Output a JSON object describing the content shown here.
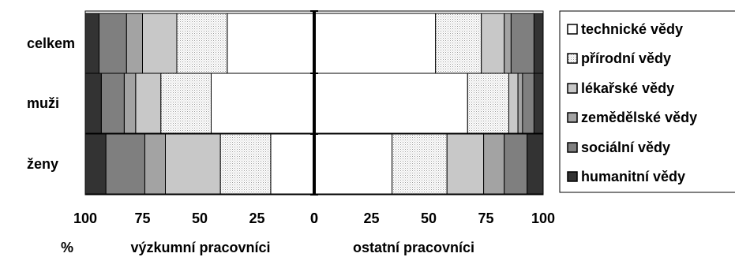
{
  "chart_data": {
    "type": "bar",
    "orientation": "horizontal",
    "stacked": true,
    "categories": [
      "celkem",
      "muži",
      "ženy"
    ],
    "panels": [
      {
        "name": "výzkumní pracovníci",
        "direction": "reversed",
        "xlim": [
          100,
          0
        ],
        "ticks": [
          "100",
          "75",
          "50",
          "25",
          "0"
        ],
        "tick_values": [
          100,
          75,
          50,
          25,
          0
        ],
        "series": [
          {
            "name": "technické vědy",
            "values": [
              38,
              45,
              19
            ]
          },
          {
            "name": "přírodní vědy",
            "values": [
              22,
              22,
              22
            ]
          },
          {
            "name": "lékařské vědy",
            "values": [
              15,
              11,
              24
            ]
          },
          {
            "name": "zemědělské vědy",
            "values": [
              7,
              5,
              9
            ]
          },
          {
            "name": "sociální vědy",
            "values": [
              12,
              10,
              17
            ]
          },
          {
            "name": "humanitní vědy",
            "values": [
              6,
              7,
              9
            ]
          }
        ]
      },
      {
        "name": "ostatní pracovníci",
        "direction": "normal",
        "xlim": [
          0,
          100
        ],
        "ticks": [
          "0",
          "25",
          "50",
          "75",
          "100"
        ],
        "tick_values": [
          0,
          25,
          50,
          75,
          100
        ],
        "series": [
          {
            "name": "technické vědy",
            "values": [
              53,
              67,
              34
            ]
          },
          {
            "name": "přírodní vědy",
            "values": [
              20,
              18,
              24
            ]
          },
          {
            "name": "lékařské vědy",
            "values": [
              10,
              4,
              16
            ]
          },
          {
            "name": "zemědělské vědy",
            "values": [
              3,
              2,
              9
            ]
          },
          {
            "name": "sociální vědy",
            "values": [
              10,
              5,
              10
            ]
          },
          {
            "name": "humanitní vědy",
            "values": [
              4,
              4,
              7
            ]
          }
        ]
      }
    ],
    "xlabel_unit": "%",
    "grid": false,
    "legend_placement": "right"
  },
  "series_colors": {
    "technické vědy": "#ffffff",
    "přírodní vědy": "#eeeeee",
    "lékařské vědy": "#c8c8c8",
    "zemědělské vědy": "#a3a3a3",
    "sociální vědy": "#7f7f7f",
    "humanitní vědy": "#333333"
  },
  "series_patterns": {
    "přírodní vědy": "dotted"
  }
}
